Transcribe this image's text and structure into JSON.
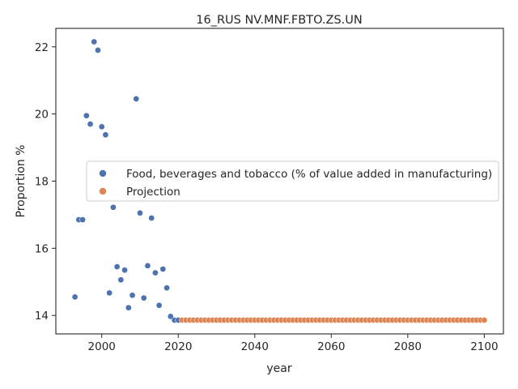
{
  "chart_data": {
    "type": "scatter",
    "title": "16_RUS NV.MNF.FBTO.ZS.UN",
    "xlabel": "year",
    "ylabel": "Proportion %",
    "xlim": [
      1988,
      2105
    ],
    "ylim": [
      13.45,
      22.55
    ],
    "xticks": [
      2000,
      2020,
      2040,
      2060,
      2080,
      2100
    ],
    "yticks": [
      14,
      16,
      18,
      20,
      22
    ],
    "grid": false,
    "legend_position": "center-right",
    "series": [
      {
        "name": "Food, beverages and tobacco (% of value added in manufacturing)",
        "color": "#4c72b0",
        "points": [
          [
            1993,
            14.55
          ],
          [
            1994,
            16.85
          ],
          [
            1995,
            16.85
          ],
          [
            1996,
            19.95
          ],
          [
            1997,
            19.7
          ],
          [
            1998,
            22.15
          ],
          [
            1999,
            21.9
          ],
          [
            2000,
            19.62
          ],
          [
            2001,
            19.38
          ],
          [
            2002,
            14.67
          ],
          [
            2003,
            17.22
          ],
          [
            2004,
            15.45
          ],
          [
            2005,
            15.06
          ],
          [
            2006,
            15.35
          ],
          [
            2007,
            14.23
          ],
          [
            2008,
            14.6
          ],
          [
            2009,
            20.45
          ],
          [
            2010,
            17.05
          ],
          [
            2011,
            14.52
          ],
          [
            2012,
            15.48
          ],
          [
            2013,
            16.9
          ],
          [
            2014,
            15.27
          ],
          [
            2015,
            14.3
          ],
          [
            2016,
            15.38
          ],
          [
            2017,
            14.82
          ],
          [
            2018,
            13.97
          ],
          [
            2019,
            13.86
          ],
          [
            2020,
            13.86
          ]
        ]
      },
      {
        "name": "Projection",
        "color": "#dd8452",
        "x_start": 2021,
        "x_end": 2100,
        "value": 13.86
      }
    ]
  }
}
